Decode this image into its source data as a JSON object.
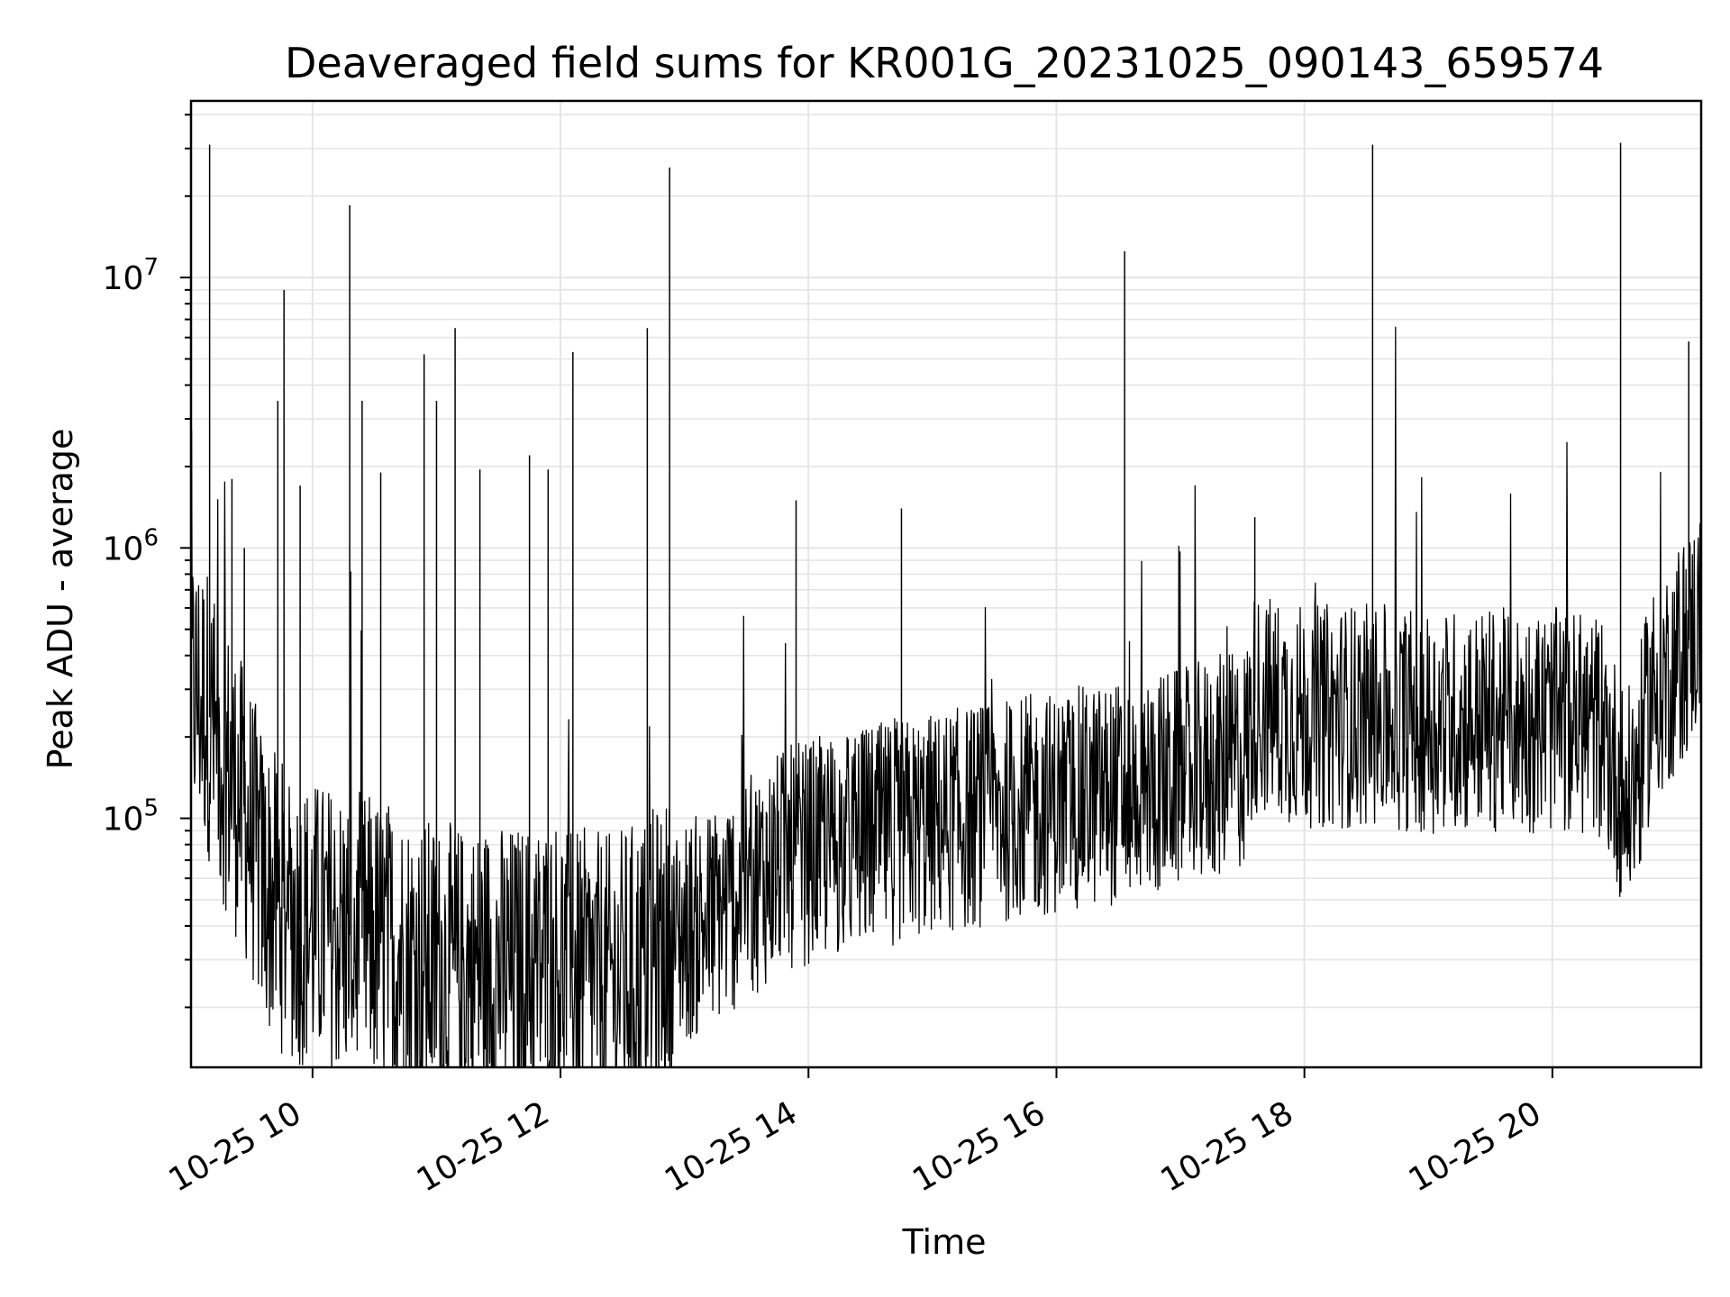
{
  "chart_data": {
    "type": "line",
    "title": "Deaveraged field sums for KR001G_20231025_090143_659574",
    "xlabel": "Time",
    "ylabel": "Peak ADU - average",
    "y_scale": "log",
    "ylim": [
      12000,
      45000000
    ],
    "xlim_hours": [
      9.02,
      21.2
    ],
    "grid": true,
    "line_color": "#000000",
    "grid_color": "#e5e5e5",
    "x_ticks": [
      {
        "hour": 10,
        "label": "10-25 10"
      },
      {
        "hour": 12,
        "label": "10-25 12"
      },
      {
        "hour": 14,
        "label": "10-25 14"
      },
      {
        "hour": 16,
        "label": "10-25 16"
      },
      {
        "hour": 18,
        "label": "10-25 18"
      },
      {
        "hour": 20,
        "label": "10-25 20"
      }
    ],
    "y_ticks": [
      {
        "value": 100000,
        "base": "10",
        "exp": "5"
      },
      {
        "value": 1000000,
        "base": "10",
        "exp": "6"
      },
      {
        "value": 10000000,
        "base": "10",
        "exp": "7"
      }
    ],
    "series": [
      {
        "x": [
          9.02,
          9.1,
          9.16,
          9.2,
          9.3,
          9.4,
          9.5,
          9.6,
          9.7,
          9.8,
          9.9,
          10.0,
          10.2,
          10.4,
          10.6,
          10.8,
          11.0,
          11.2,
          11.4,
          11.6,
          11.8,
          12.0,
          12.2,
          12.4,
          12.6,
          12.8,
          13.0,
          13.2,
          13.4,
          13.6,
          13.8,
          14.0,
          14.5,
          15.0,
          15.5,
          16.0,
          16.5,
          17.0,
          17.4,
          17.52,
          17.6,
          17.8,
          18.0,
          18.5,
          19.0,
          19.5,
          20.0,
          20.4,
          20.6,
          20.7,
          20.8,
          21.0,
          21.2
        ],
        "y": [
          300000,
          280000,
          250000,
          200000,
          160000,
          120000,
          90000,
          60000,
          50000,
          45000,
          42000,
          40000,
          38000,
          36000,
          34000,
          30000,
          28000,
          27000,
          28000,
          27000,
          28000,
          30000,
          26000,
          25000,
          28000,
          32000,
          38000,
          42000,
          50000,
          60000,
          70000,
          75000,
          85000,
          95000,
          105000,
          115000,
          125000,
          140000,
          160000,
          170000,
          270000,
          250000,
          240000,
          240000,
          230000,
          230000,
          230000,
          220000,
          110000,
          160000,
          280000,
          380000,
          550000
        ]
      }
    ],
    "spikes": [
      {
        "x": 9.17,
        "y": 31000000
      },
      {
        "x": 9.2,
        "y": 550000
      },
      {
        "x": 9.35,
        "y": 1800000
      },
      {
        "x": 9.45,
        "y": 1000000
      },
      {
        "x": 9.72,
        "y": 3500000
      },
      {
        "x": 9.77,
        "y": 9000000
      },
      {
        "x": 9.9,
        "y": 1700000
      },
      {
        "x": 10.3,
        "y": 18500000
      },
      {
        "x": 10.4,
        "y": 3500000
      },
      {
        "x": 10.55,
        "y": 1900000
      },
      {
        "x": 10.9,
        "y": 5200000
      },
      {
        "x": 11.0,
        "y": 3500000
      },
      {
        "x": 11.15,
        "y": 6500000
      },
      {
        "x": 11.35,
        "y": 1950000
      },
      {
        "x": 11.75,
        "y": 2200000
      },
      {
        "x": 11.9,
        "y": 1950000
      },
      {
        "x": 12.1,
        "y": 5300000
      },
      {
        "x": 12.7,
        "y": 6500000
      },
      {
        "x": 12.88,
        "y": 25500000
      },
      {
        "x": 13.9,
        "y": 1500000
      },
      {
        "x": 14.75,
        "y": 1400000
      },
      {
        "x": 16.55,
        "y": 12500000
      },
      {
        "x": 17.6,
        "y": 1300000
      },
      {
        "x": 18.55,
        "y": 31000000
      },
      {
        "x": 20.55,
        "y": 31500000
      },
      {
        "x": 21.1,
        "y": 5800000
      }
    ]
  }
}
